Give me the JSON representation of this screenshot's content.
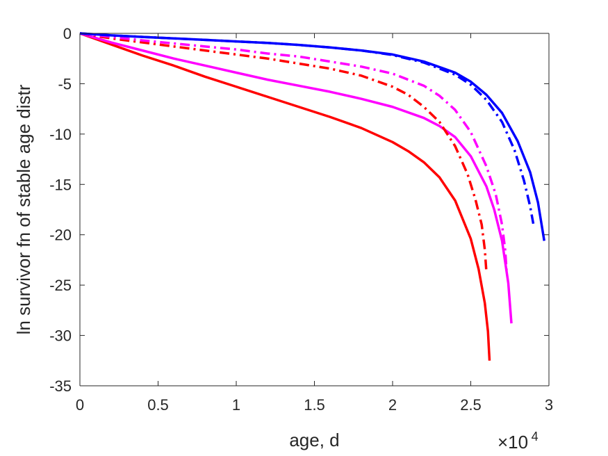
{
  "chart_data": {
    "type": "line",
    "title": "",
    "xlabel": "age, d",
    "ylabel": "ln survivor fn of stable age distr",
    "x_exponent_label": "×10",
    "x_exponent_power": "4",
    "xlim": [
      0,
      30000
    ],
    "ylim": [
      -35,
      0
    ],
    "xticks": [
      0,
      5000,
      10000,
      15000,
      20000,
      25000,
      30000
    ],
    "xtick_labels": [
      "0",
      "0.5",
      "1",
      "1.5",
      "2",
      "2.5",
      "3"
    ],
    "yticks": [
      0,
      -5,
      -10,
      -15,
      -20,
      -25,
      -30,
      -35
    ],
    "ytick_labels": [
      "0",
      "-5",
      "-10",
      "-15",
      "-20",
      "-25",
      "-30",
      "-35"
    ],
    "grid": false,
    "legend": "none",
    "series": [
      {
        "color": "#ff0000",
        "style": "solid",
        "x": [
          0,
          2000,
          4000,
          6000,
          8000,
          10000,
          12000,
          14000,
          16000,
          18000,
          20000,
          21000,
          22000,
          23000,
          24000,
          25000,
          25500,
          25900,
          26100,
          26200
        ],
        "y": [
          0,
          -1.1,
          -2.2,
          -3.2,
          -4.3,
          -5.3,
          -6.3,
          -7.3,
          -8.3,
          -9.4,
          -10.8,
          -11.7,
          -12.8,
          -14.3,
          -16.6,
          -20.4,
          -23.4,
          -26.8,
          -29.6,
          -32.5
        ]
      },
      {
        "color": "#ff00ff",
        "style": "solid",
        "x": [
          0,
          2000,
          4000,
          6000,
          8000,
          10000,
          12000,
          14000,
          16000,
          18000,
          20000,
          22000,
          23000,
          24000,
          25000,
          26000,
          26500,
          27000,
          27400,
          27600
        ],
        "y": [
          0,
          -0.9,
          -1.7,
          -2.5,
          -3.2,
          -3.9,
          -4.6,
          -5.2,
          -5.8,
          -6.5,
          -7.3,
          -8.4,
          -9.2,
          -10.3,
          -12.2,
          -15.2,
          -17.5,
          -20.6,
          -24.8,
          -28.8
        ]
      },
      {
        "color": "#ff0000",
        "style": "dashdot",
        "x": [
          0,
          2000,
          4000,
          6000,
          8000,
          10000,
          12000,
          14000,
          16000,
          18000,
          20000,
          21000,
          22000,
          23000,
          24000,
          24800,
          25300,
          25700,
          25900,
          26000
        ],
        "y": [
          0,
          -0.5,
          -0.9,
          -1.3,
          -1.7,
          -2.1,
          -2.5,
          -3.0,
          -3.5,
          -4.2,
          -5.3,
          -6.1,
          -7.3,
          -8.8,
          -11.2,
          -14.0,
          -16.5,
          -19.0,
          -21.5,
          -23.7
        ]
      },
      {
        "color": "#ff00ff",
        "style": "dashdot",
        "x": [
          0,
          2000,
          4000,
          6000,
          8000,
          10000,
          12000,
          14000,
          16000,
          18000,
          20000,
          22000,
          23000,
          24000,
          25000,
          26000,
          26600,
          27000,
          27200,
          27300
        ],
        "y": [
          0,
          -0.35,
          -0.7,
          -1.0,
          -1.3,
          -1.6,
          -2.0,
          -2.3,
          -2.8,
          -3.3,
          -4.0,
          -5.2,
          -6.2,
          -7.6,
          -9.8,
          -13.2,
          -16.0,
          -19.0,
          -21.5,
          -23.8
        ]
      },
      {
        "color": "#0000ff",
        "style": "solid",
        "x": [
          0,
          2000,
          4000,
          6000,
          8000,
          10000,
          12000,
          14000,
          16000,
          18000,
          20000,
          22000,
          24000,
          25000,
          26000,
          27000,
          28000,
          28800,
          29300,
          29700
        ],
        "y": [
          0,
          -0.2,
          -0.35,
          -0.5,
          -0.65,
          -0.8,
          -0.95,
          -1.15,
          -1.4,
          -1.7,
          -2.1,
          -2.8,
          -3.9,
          -4.8,
          -6.1,
          -7.9,
          -10.7,
          -13.8,
          -16.8,
          -20.6
        ]
      },
      {
        "color": "#0000ff",
        "style": "dashdot",
        "x": [
          0,
          2000,
          4000,
          6000,
          8000,
          10000,
          12000,
          14000,
          16000,
          18000,
          20000,
          22000,
          24000,
          25000,
          26000,
          27000,
          27800,
          28400,
          28800,
          29000
        ],
        "y": [
          0,
          -0.2,
          -0.35,
          -0.5,
          -0.65,
          -0.8,
          -0.95,
          -1.15,
          -1.4,
          -1.7,
          -2.15,
          -2.9,
          -4.1,
          -5.1,
          -6.6,
          -8.8,
          -11.6,
          -14.6,
          -17.2,
          -18.9
        ]
      }
    ]
  }
}
